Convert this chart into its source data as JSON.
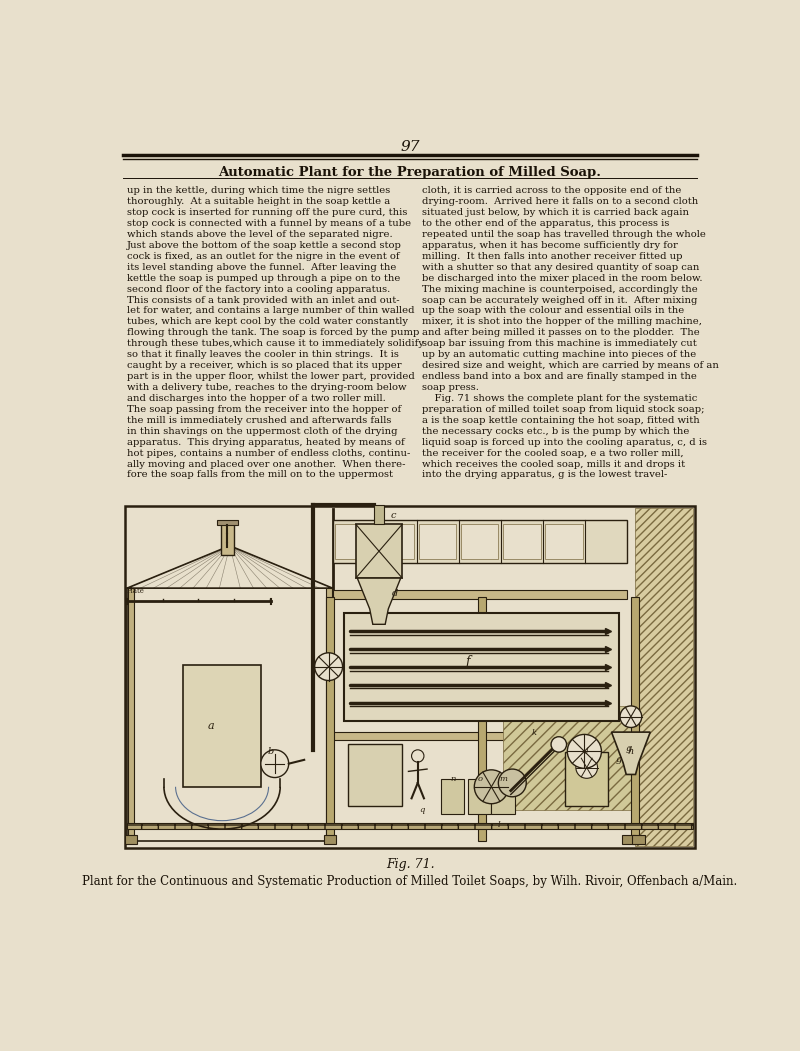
{
  "background_color": "#e8e0cc",
  "page_number": "97",
  "header_title": "Automatic Plant for the Preparation of Milled Soap.",
  "fig_caption": "Fig. 71.",
  "fig_subcaption": "Plant for the Continuous and Systematic Production of Milled Toilet Soaps, by Wilh. Rivoir, Offenbach a/Main.",
  "col1_text": [
    "up in the kettle, during which time the nigre settles",
    "thoroughly.  At a suitable height in the soap kettle a",
    "stop cock is inserted for running off the pure curd, this",
    "stop cock is connected with a funnel by means of a tube",
    "which stands above the level of the separated nigre.",
    "Just above the bottom of the soap kettle a second stop",
    "cock is fixed, as an outlet for the nigre in the event of",
    "its level standing above the funnel.  After leaving the",
    "kettle the soap is pumped up through a pipe on to the",
    "second floor of the factory into a cooling apparatus.",
    "This consists of a tank provided with an inlet and out-",
    "let for water, and contains a large number of thin walled",
    "tubes, which are kept cool by the cold water constantly",
    "flowing through the tank. The soap is forced by the pump",
    "through these tubes,which cause it to immediately solidify",
    "so that it finally leaves the cooler in thin strings.  It is",
    "caught by a receiver, which is so placed that its upper",
    "part is in the upper floor, whilst the lower part, provided",
    "with a delivery tube, reaches to the drying-room below",
    "and discharges into the hopper of a two roller mill.",
    "The soap passing from the receiver into the hopper of",
    "the mill is immediately crushed and afterwards falls",
    "in thin shavings on the uppermost cloth of the drying",
    "apparatus.  This drying apparatus, heated by means of",
    "hot pipes, contains a number of endless cloths, continu-",
    "ally moving and placed over one another.  When there-",
    "fore the soap falls from the mill on to the uppermost"
  ],
  "col2_text": [
    "cloth, it is carried across to the opposite end of the",
    "drying-room.  Arrived here it falls on to a second cloth",
    "situated just below, by which it is carried back again",
    "to the other end of the apparatus, this process is",
    "repeated until the soap has travelled through the whole",
    "apparatus, when it has become sufficiently dry for",
    "milling.  It then falls into another receiver fitted up",
    "with a shutter so that any desired quantity of soap can",
    "be discharged into the mixer placed in the room below.",
    "The mixing machine is counterpoised, accordingly the",
    "soap can be accurately weighed off in it.  After mixing",
    "up the soap with the colour and essential oils in the",
    "mixer, it is shot into the hopper of the milling machine,",
    "and after being milled it passes on to the plodder.  The",
    "soap bar issuing from this machine is immediately cut",
    "up by an automatic cutting machine into pieces of the",
    "desired size and weight, which are carried by means of an",
    "endless band into a box and are finally stamped in the",
    "soap press.",
    "    Fig. 71 shows the complete plant for the systematic",
    "preparation of milled toilet soap from liquid stock soap;",
    "a is the soap kettle containing the hot soap, fitted with",
    "the necessary cocks etc., b is the pump by which the",
    "liquid soap is forced up into the cooling aparatus, c, d is",
    "the receiver for the cooled soap, e a two roller mill,",
    "which receives the cooled soap, mills it and drops it",
    "into the drying apparatus, g is the lowest travel-"
  ],
  "text_color": "#1a1208",
  "line_color": "#1a1208",
  "draw_color": "#2a2010"
}
